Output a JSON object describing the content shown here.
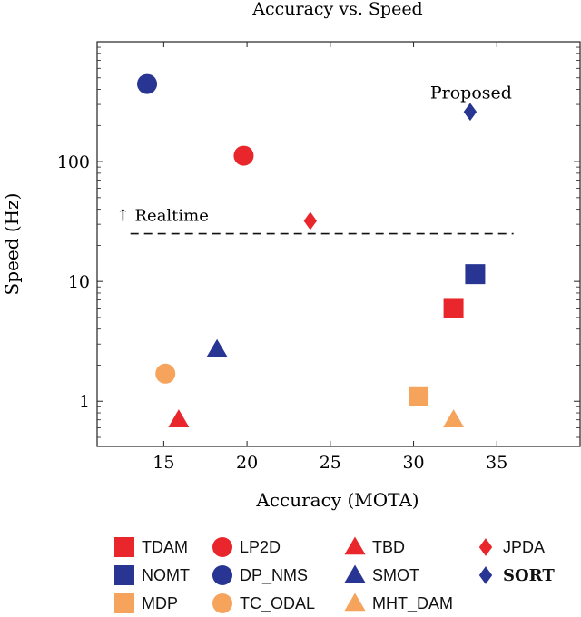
{
  "chart_data": {
    "type": "scatter",
    "title": "Accuracy vs. Speed",
    "xlabel": "Accuracy (MOTA)",
    "ylabel": "Speed (Hz)",
    "xlim": [
      11,
      40
    ],
    "ylim": [
      0.42,
      1000
    ],
    "yscale": "log",
    "x_ticks": [
      15,
      20,
      25,
      30,
      35
    ],
    "y_ticks": [
      1,
      10,
      100
    ],
    "y_tick_labels": [
      "1",
      "10",
      "100"
    ],
    "realtime_line": {
      "y": 25,
      "x_range": [
        13,
        36
      ],
      "label": "↑ Realtime"
    },
    "annotation": {
      "text": "Proposed",
      "target": "SORT"
    },
    "series": [
      {
        "name": "TDAM",
        "x": 32.4,
        "y": 6,
        "marker": "square",
        "color": "#e8262b"
      },
      {
        "name": "LP2D",
        "x": 19.8,
        "y": 112,
        "marker": "circle",
        "color": "#e8262b"
      },
      {
        "name": "TBD",
        "x": 15.9,
        "y": 0.7,
        "marker": "triangle",
        "color": "#e8262b"
      },
      {
        "name": "JPDA",
        "x": 23.8,
        "y": 32,
        "marker": "diamond",
        "color": "#e8262b"
      },
      {
        "name": "NOMT",
        "x": 33.7,
        "y": 11.5,
        "marker": "square",
        "color": "#283593"
      },
      {
        "name": "DP_NMS",
        "x": 14.0,
        "y": 444,
        "marker": "circle",
        "color": "#283593"
      },
      {
        "name": "SMOT",
        "x": 18.2,
        "y": 2.7,
        "marker": "triangle",
        "color": "#283593"
      },
      {
        "name": "SORT",
        "x": 33.4,
        "y": 260,
        "marker": "diamond",
        "color": "#283593"
      },
      {
        "name": "MDP",
        "x": 30.3,
        "y": 1.1,
        "marker": "square",
        "color": "#f6a35c"
      },
      {
        "name": "TC_ODAL",
        "x": 15.1,
        "y": 1.7,
        "marker": "circle",
        "color": "#f6a35c"
      },
      {
        "name": "MHT_DAM",
        "x": 32.4,
        "y": 0.7,
        "marker": "triangle",
        "color": "#f6a35c"
      }
    ],
    "legend": {
      "placement": "bottom",
      "entries": [
        "TDAM",
        "LP2D",
        "TBD",
        "JPDA",
        "NOMT",
        "DP_NMS",
        "SMOT",
        "SORT",
        "MDP",
        "TC_ODAL",
        "MHT_DAM"
      ]
    }
  }
}
